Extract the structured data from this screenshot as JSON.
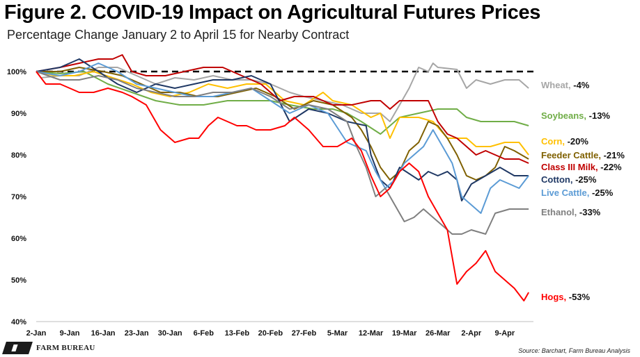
{
  "title": "Figure 2. COVID-19 Impact on Agricultural Futures Prices",
  "subtitle": "Percentage Change January 2 to April 15 for Nearby Contract",
  "source": "Source: Barchart, Farm Bureau Analysis",
  "logo_text": "FARM BUREAU",
  "chart_data": {
    "type": "line",
    "x_tick_labels": [
      "2-Jan",
      "9-Jan",
      "16-Jan",
      "23-Jan",
      "30-Jan",
      "6-Feb",
      "13-Feb",
      "20-Feb",
      "27-Feb",
      "5-Mar",
      "12-Mar",
      "19-Mar",
      "26-Mar",
      "2-Apr",
      "9-Apr"
    ],
    "x_range_days": [
      0,
      104
    ],
    "y_tick_labels": [
      "40%",
      "50%",
      "60%",
      "70%",
      "80%",
      "90%",
      "100%"
    ],
    "y_ticks": [
      40,
      50,
      60,
      70,
      80,
      90,
      100
    ],
    "ylim": [
      40,
      103
    ],
    "reference_line": 100,
    "series": [
      {
        "name": "Wheat",
        "label": "Wheat, -4%",
        "color": "#a6a6a6",
        "points": [
          [
            0,
            100
          ],
          [
            1,
            98.5
          ],
          [
            5,
            99
          ],
          [
            9,
            99
          ],
          [
            13,
            101
          ],
          [
            17,
            101
          ],
          [
            21,
            99
          ],
          [
            25,
            97
          ],
          [
            29,
            98.5
          ],
          [
            33,
            98
          ],
          [
            37,
            99
          ],
          [
            41,
            98
          ],
          [
            45,
            98
          ],
          [
            49,
            97
          ],
          [
            53,
            95
          ],
          [
            56,
            94
          ],
          [
            60,
            93
          ],
          [
            64,
            92
          ],
          [
            68,
            90
          ],
          [
            72,
            90
          ],
          [
            74,
            88
          ],
          [
            76,
            92
          ],
          [
            78,
            96
          ],
          [
            80,
            101
          ],
          [
            82,
            100
          ],
          [
            83,
            102
          ],
          [
            84,
            101
          ],
          [
            88,
            100.5
          ],
          [
            90,
            96
          ],
          [
            92,
            98
          ],
          [
            95,
            97
          ],
          [
            98,
            98
          ],
          [
            101,
            98
          ],
          [
            103,
            96
          ]
        ]
      },
      {
        "name": "Soybeans",
        "label": "Soybeans, -13%",
        "color": "#70ad47",
        "points": [
          [
            0,
            100
          ],
          [
            5,
            99.5
          ],
          [
            10,
            100
          ],
          [
            15,
            97
          ],
          [
            20,
            95
          ],
          [
            25,
            93
          ],
          [
            30,
            92
          ],
          [
            35,
            92
          ],
          [
            40,
            93
          ],
          [
            45,
            93
          ],
          [
            49,
            93
          ],
          [
            53,
            92
          ],
          [
            58,
            91
          ],
          [
            62,
            91
          ],
          [
            65,
            90
          ],
          [
            68,
            88
          ],
          [
            72,
            85
          ],
          [
            76,
            89
          ],
          [
            80,
            90
          ],
          [
            84,
            91
          ],
          [
            88,
            91
          ],
          [
            90,
            89
          ],
          [
            93,
            88
          ],
          [
            97,
            88
          ],
          [
            100,
            88
          ],
          [
            103,
            87
          ]
        ]
      },
      {
        "name": "Corn",
        "label": "Corn, -20%",
        "color": "#ffc000",
        "points": [
          [
            0,
            100
          ],
          [
            4,
            99
          ],
          [
            8,
            99
          ],
          [
            12,
            100
          ],
          [
            16,
            98.5
          ],
          [
            20,
            97
          ],
          [
            24,
            95
          ],
          [
            28,
            94
          ],
          [
            32,
            95
          ],
          [
            36,
            97
          ],
          [
            40,
            96
          ],
          [
            44,
            97
          ],
          [
            48,
            97
          ],
          [
            52,
            93
          ],
          [
            56,
            92
          ],
          [
            60,
            95
          ],
          [
            62,
            93
          ],
          [
            66,
            92
          ],
          [
            70,
            89
          ],
          [
            72,
            90
          ],
          [
            74,
            84
          ],
          [
            76,
            89
          ],
          [
            80,
            89
          ],
          [
            83,
            88
          ],
          [
            86,
            84
          ],
          [
            90,
            84
          ],
          [
            92,
            82
          ],
          [
            95,
            82
          ],
          [
            98,
            83
          ],
          [
            101,
            83
          ],
          [
            103,
            80
          ]
        ]
      },
      {
        "name": "Feeder Cattle",
        "label": "Feeder Cattle, -21%",
        "color": "#7f6000",
        "points": [
          [
            0,
            100
          ],
          [
            5,
            100
          ],
          [
            9,
            101
          ],
          [
            14,
            100
          ],
          [
            18,
            99
          ],
          [
            22,
            97
          ],
          [
            26,
            95
          ],
          [
            30,
            95
          ],
          [
            34,
            94
          ],
          [
            38,
            94
          ],
          [
            42,
            95
          ],
          [
            46,
            96
          ],
          [
            50,
            94
          ],
          [
            54,
            91
          ],
          [
            58,
            93
          ],
          [
            62,
            92
          ],
          [
            66,
            89
          ],
          [
            68,
            86
          ],
          [
            70,
            82
          ],
          [
            72,
            77
          ],
          [
            74,
            74
          ],
          [
            76,
            76
          ],
          [
            78,
            81
          ],
          [
            80,
            83
          ],
          [
            82,
            88
          ],
          [
            84,
            87
          ],
          [
            86,
            84
          ],
          [
            88,
            80
          ],
          [
            90,
            75
          ],
          [
            92,
            74
          ],
          [
            94,
            75
          ],
          [
            96,
            77
          ],
          [
            98,
            82
          ],
          [
            100,
            81
          ],
          [
            103,
            79
          ]
        ]
      },
      {
        "name": "Class III Milk",
        "label": "Class III Milk, -22%",
        "color": "#c00000",
        "points": [
          [
            0,
            100
          ],
          [
            5,
            101
          ],
          [
            9,
            102
          ],
          [
            13,
            103
          ],
          [
            16,
            103
          ],
          [
            18,
            104
          ],
          [
            20,
            100
          ],
          [
            23,
            99
          ],
          [
            27,
            99
          ],
          [
            31,
            100
          ],
          [
            35,
            101
          ],
          [
            39,
            101
          ],
          [
            43,
            99
          ],
          [
            47,
            97
          ],
          [
            51,
            93
          ],
          [
            54,
            94
          ],
          [
            58,
            94
          ],
          [
            62,
            92
          ],
          [
            66,
            92
          ],
          [
            70,
            93
          ],
          [
            72,
            93
          ],
          [
            74,
            91
          ],
          [
            76,
            93
          ],
          [
            80,
            93
          ],
          [
            82,
            93
          ],
          [
            84,
            88
          ],
          [
            86,
            85
          ],
          [
            88,
            84
          ],
          [
            90,
            82
          ],
          [
            92,
            80
          ],
          [
            94,
            81
          ],
          [
            96,
            80
          ],
          [
            98,
            79
          ],
          [
            101,
            79
          ],
          [
            103,
            78
          ]
        ]
      },
      {
        "name": "Cotton",
        "label": "Cotton, -25%",
        "color": "#1f3864",
        "points": [
          [
            0,
            100
          ],
          [
            5,
            101
          ],
          [
            9,
            103
          ],
          [
            13,
            100
          ],
          [
            17,
            97
          ],
          [
            21,
            95
          ],
          [
            25,
            97
          ],
          [
            29,
            96
          ],
          [
            33,
            97
          ],
          [
            37,
            98
          ],
          [
            41,
            98
          ],
          [
            45,
            99
          ],
          [
            49,
            97
          ],
          [
            53,
            88
          ],
          [
            57,
            91
          ],
          [
            61,
            90
          ],
          [
            65,
            88
          ],
          [
            69,
            87
          ],
          [
            70,
            80
          ],
          [
            72,
            74
          ],
          [
            74,
            72
          ],
          [
            76,
            77
          ],
          [
            80,
            74
          ],
          [
            82,
            76
          ],
          [
            84,
            75
          ],
          [
            86,
            76
          ],
          [
            88,
            74
          ],
          [
            89,
            69
          ],
          [
            91,
            73
          ],
          [
            94,
            75
          ],
          [
            97,
            77
          ],
          [
            100,
            75
          ],
          [
            103,
            75
          ]
        ]
      },
      {
        "name": "Live Cattle",
        "label": "Live Cattle, -25%",
        "color": "#5b9bd5",
        "points": [
          [
            0,
            100
          ],
          [
            5,
            99
          ],
          [
            9,
            100
          ],
          [
            13,
            102
          ],
          [
            17,
            100
          ],
          [
            21,
            97
          ],
          [
            25,
            96
          ],
          [
            29,
            95
          ],
          [
            33,
            94
          ],
          [
            37,
            94
          ],
          [
            41,
            95
          ],
          [
            45,
            96
          ],
          [
            49,
            93
          ],
          [
            53,
            90
          ],
          [
            57,
            92
          ],
          [
            61,
            90
          ],
          [
            65,
            83
          ],
          [
            69,
            81
          ],
          [
            71,
            76
          ],
          [
            73,
            72
          ],
          [
            75,
            74
          ],
          [
            77,
            78
          ],
          [
            79,
            80
          ],
          [
            81,
            82
          ],
          [
            83,
            86
          ],
          [
            85,
            82
          ],
          [
            87,
            78
          ],
          [
            89,
            70
          ],
          [
            91,
            68
          ],
          [
            93,
            66
          ],
          [
            95,
            72
          ],
          [
            97,
            74
          ],
          [
            99,
            73
          ],
          [
            101,
            72
          ],
          [
            103,
            75
          ]
        ]
      },
      {
        "name": "Ethanol",
        "label": "Ethanol, -33%",
        "color": "#7f7f7f",
        "points": [
          [
            0,
            100
          ],
          [
            5,
            98
          ],
          [
            9,
            98
          ],
          [
            13,
            99
          ],
          [
            17,
            98
          ],
          [
            21,
            96
          ],
          [
            25,
            95
          ],
          [
            29,
            94
          ],
          [
            33,
            94
          ],
          [
            37,
            95
          ],
          [
            41,
            95
          ],
          [
            45,
            96
          ],
          [
            49,
            94
          ],
          [
            53,
            91
          ],
          [
            57,
            92
          ],
          [
            61,
            91
          ],
          [
            65,
            88
          ],
          [
            67,
            82
          ],
          [
            69,
            77
          ],
          [
            71,
            70
          ],
          [
            73,
            72
          ],
          [
            75,
            68
          ],
          [
            77,
            64
          ],
          [
            79,
            65
          ],
          [
            81,
            67
          ],
          [
            83,
            65
          ],
          [
            85,
            63
          ],
          [
            87,
            61
          ],
          [
            89,
            61
          ],
          [
            91,
            62
          ],
          [
            94,
            61
          ],
          [
            96,
            66
          ],
          [
            99,
            67
          ],
          [
            101,
            67
          ],
          [
            103,
            67
          ]
        ]
      },
      {
        "name": "Hogs",
        "label": "Hogs, -53%",
        "color": "#ff0000",
        "points": [
          [
            0,
            100
          ],
          [
            2,
            97
          ],
          [
            5,
            97
          ],
          [
            7,
            96
          ],
          [
            9,
            95
          ],
          [
            12,
            95
          ],
          [
            15,
            96
          ],
          [
            18,
            95
          ],
          [
            20,
            94
          ],
          [
            23,
            92
          ],
          [
            26,
            86
          ],
          [
            29,
            83
          ],
          [
            32,
            84
          ],
          [
            34,
            84
          ],
          [
            36,
            87
          ],
          [
            38,
            89
          ],
          [
            40,
            88
          ],
          [
            42,
            87
          ],
          [
            44,
            87
          ],
          [
            46,
            86
          ],
          [
            49,
            86
          ],
          [
            52,
            87
          ],
          [
            54,
            89
          ],
          [
            57,
            86
          ],
          [
            60,
            82
          ],
          [
            63,
            82
          ],
          [
            66,
            84
          ],
          [
            68,
            81
          ],
          [
            70,
            75
          ],
          [
            72,
            70
          ],
          [
            74,
            72
          ],
          [
            76,
            76
          ],
          [
            78,
            78
          ],
          [
            80,
            76
          ],
          [
            82,
            70
          ],
          [
            84,
            66
          ],
          [
            86,
            62
          ],
          [
            88,
            49
          ],
          [
            90,
            52
          ],
          [
            92,
            54
          ],
          [
            94,
            57
          ],
          [
            96,
            52
          ],
          [
            98,
            50
          ],
          [
            100,
            48
          ],
          [
            102,
            45
          ],
          [
            103,
            47
          ]
        ]
      }
    ]
  }
}
